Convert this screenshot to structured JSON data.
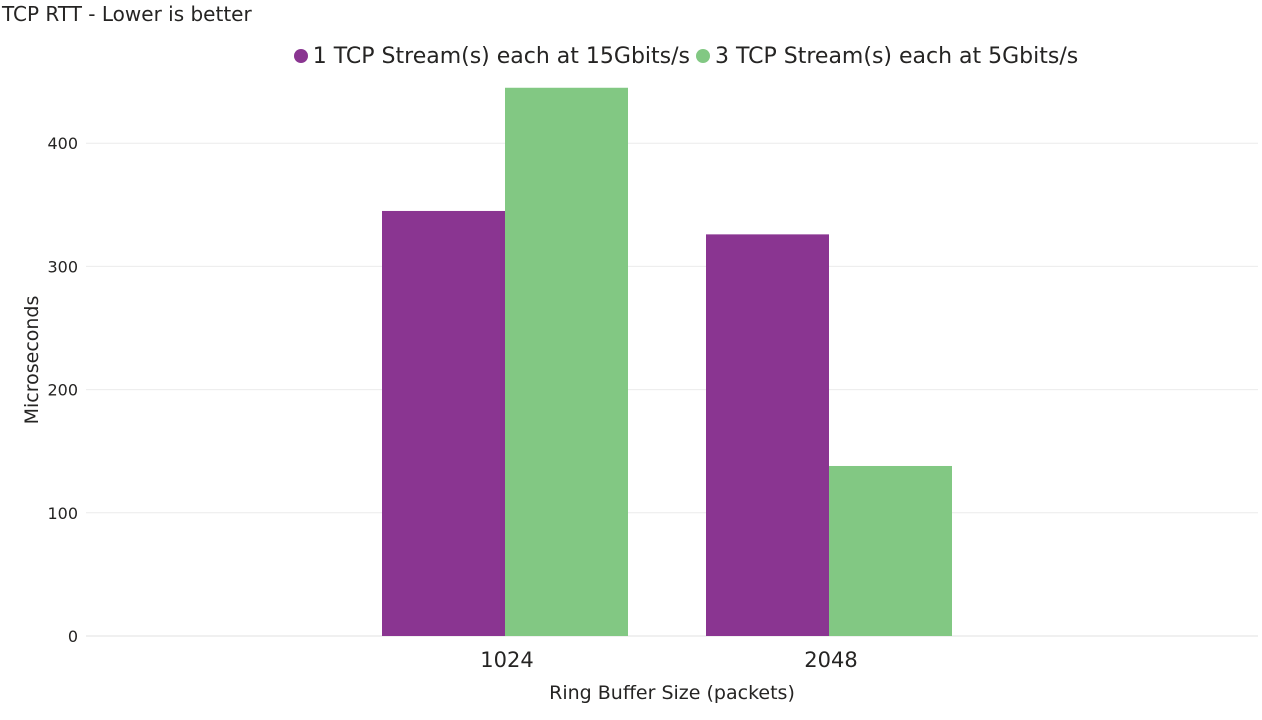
{
  "chart_data": {
    "type": "bar",
    "title": "TCP RTT - Lower is better",
    "xlabel": "Ring Buffer Size (packets)",
    "ylabel": "Microseconds",
    "categories": [
      "1024",
      "2048"
    ],
    "series": [
      {
        "name": "1 TCP Stream(s) each at 15Gbits/s",
        "color": "#8A3591",
        "values": [
          345,
          326
        ]
      },
      {
        "name": "3 TCP Stream(s) each at 5Gbits/s",
        "color": "#82C883",
        "values": [
          445,
          138
        ]
      }
    ],
    "ylim": [
      0,
      450
    ],
    "yticks": [
      0,
      100,
      200,
      300,
      400
    ],
    "grid": true,
    "legend": "top-center"
  }
}
